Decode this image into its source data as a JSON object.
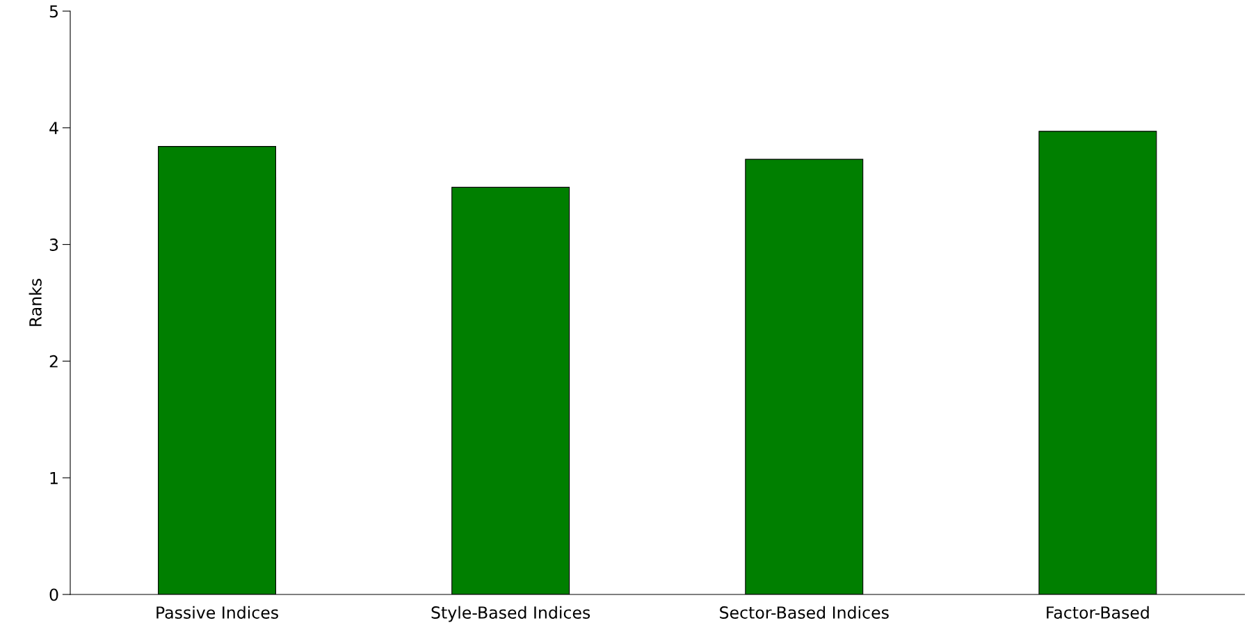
{
  "chart_data": {
    "type": "bar",
    "ylabel": "Ranks",
    "categories": [
      "Passive Indices",
      "Style-Based Indices",
      "Sector-Based Indices",
      "Factor-Based"
    ],
    "values": [
      3.84,
      3.49,
      3.73,
      3.97
    ],
    "color": "#007f00",
    "ylim": [
      0,
      5
    ],
    "yticks": [
      0,
      1,
      2,
      3,
      4,
      5
    ],
    "grid": false,
    "legend": false
  }
}
